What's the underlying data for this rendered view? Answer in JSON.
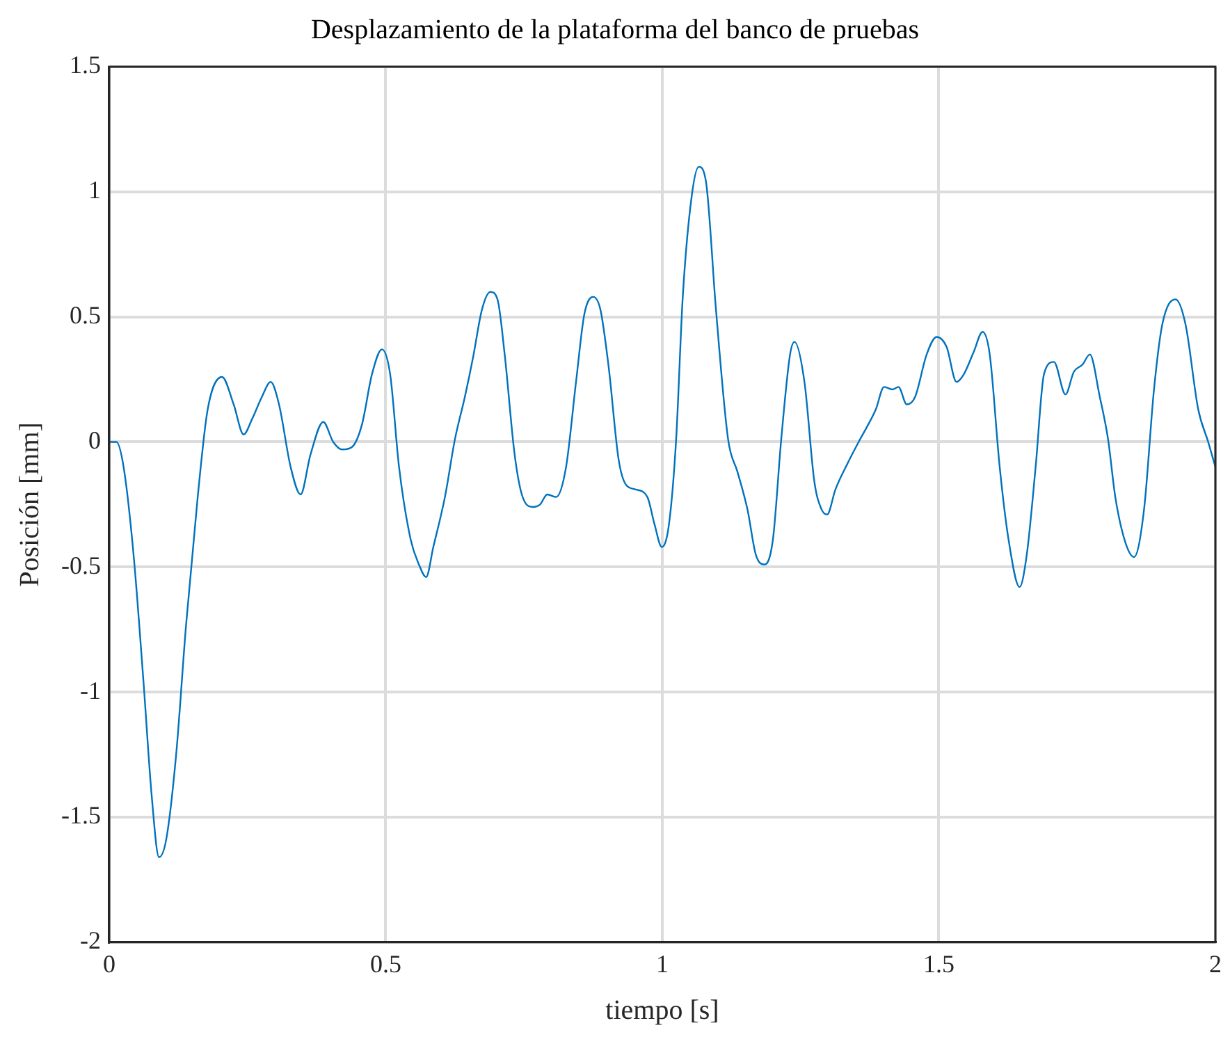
{
  "chart_data": {
    "type": "line",
    "title": "Desplazamiento de la plataforma del banco de pruebas",
    "xlabel": "tiempo [s]",
    "ylabel": "Posición [mm]",
    "series": [
      {
        "color": "#0072bd",
        "x": [
          0,
          0.013,
          0.026,
          0.044,
          0.062,
          0.077,
          0.09,
          0.103,
          0.121,
          0.139,
          0.16,
          0.178,
          0.204,
          0.225,
          0.243,
          0.258,
          0.276,
          0.292,
          0.307,
          0.328,
          0.346,
          0.364,
          0.387,
          0.405,
          0.421,
          0.439,
          0.457,
          0.475,
          0.493,
          0.508,
          0.524,
          0.545,
          0.56,
          0.573,
          0.586,
          0.607,
          0.625,
          0.643,
          0.658,
          0.674,
          0.689,
          0.702,
          0.715,
          0.733,
          0.746,
          0.766,
          0.779,
          0.792,
          0.808,
          0.826,
          0.844,
          0.859,
          0.875,
          0.888,
          0.903,
          0.921,
          0.934,
          0.952,
          0.973,
          0.986,
          0.999,
          1.012,
          1.025,
          1.037,
          1.053,
          1.066,
          1.079,
          1.097,
          1.119,
          1.136,
          1.154,
          1.169,
          1.185,
          1.2,
          1.215,
          1.231,
          1.239,
          1.257,
          1.275,
          1.288,
          1.298,
          1.313,
          1.334,
          1.355,
          1.37,
          1.386,
          1.401,
          1.416,
          1.427,
          1.442,
          1.457,
          1.478,
          1.496,
          1.514,
          1.532,
          1.545,
          1.563,
          1.579,
          1.592,
          1.61,
          1.626,
          1.646,
          1.659,
          1.675,
          1.69,
          1.708,
          1.729,
          1.744,
          1.76,
          1.773,
          1.791,
          1.806,
          1.819,
          1.837,
          1.853,
          1.871,
          1.889,
          1.904,
          1.928,
          1.946,
          1.969,
          1.987,
          2.0
        ],
        "values": [
          0,
          0,
          -0.1,
          -0.45,
          -0.96,
          -1.42,
          -1.66,
          -1.59,
          -1.25,
          -0.73,
          -0.22,
          0.13,
          0.26,
          0.15,
          0.03,
          0.09,
          0.18,
          0.24,
          0.15,
          -0.1,
          -0.21,
          -0.05,
          0.08,
          0,
          -0.03,
          -0.02,
          0.07,
          0.27,
          0.37,
          0.27,
          -0.1,
          -0.39,
          -0.49,
          -0.54,
          -0.42,
          -0.22,
          0.01,
          0.18,
          0.34,
          0.53,
          0.6,
          0.57,
          0.35,
          -0.05,
          -0.21,
          -0.26,
          -0.25,
          -0.21,
          -0.22,
          -0.1,
          0.24,
          0.51,
          0.58,
          0.53,
          0.3,
          -0.07,
          -0.17,
          -0.19,
          -0.22,
          -0.33,
          -0.42,
          -0.33,
          0.01,
          0.58,
          0.98,
          1.1,
          1.04,
          0.53,
          0.01,
          -0.12,
          -0.27,
          -0.45,
          -0.49,
          -0.39,
          0.01,
          0.35,
          0.4,
          0.24,
          -0.16,
          -0.27,
          -0.29,
          -0.19,
          -0.09,
          0,
          0.06,
          0.13,
          0.22,
          0.21,
          0.22,
          0.15,
          0.18,
          0.35,
          0.42,
          0.38,
          0.24,
          0.27,
          0.36,
          0.44,
          0.35,
          -0.1,
          -0.39,
          -0.58,
          -0.45,
          -0.1,
          0.27,
          0.32,
          0.19,
          0.28,
          0.31,
          0.35,
          0.18,
          0.01,
          -0.22,
          -0.4,
          -0.46,
          -0.27,
          0.21,
          0.47,
          0.57,
          0.47,
          0.13,
          0,
          -0.1
        ]
      }
    ],
    "xlim": [
      0,
      2
    ],
    "xticks": [
      0,
      0.5,
      1,
      1.5,
      2
    ],
    "ylim": [
      -2,
      1.5
    ],
    "yticks": [
      -2,
      -1.5,
      -1,
      -0.5,
      0,
      0.5,
      1,
      1.5
    ],
    "grid": true,
    "legend": false,
    "marker": "none",
    "line_style": "solid"
  }
}
